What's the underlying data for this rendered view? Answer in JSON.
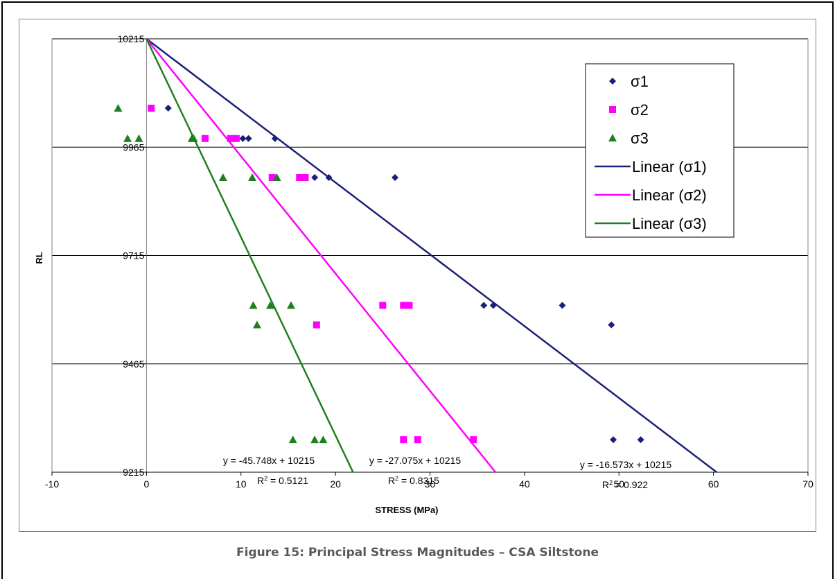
{
  "caption": "Figure 15: Principal Stress Magnitudes – CSA Siltstone",
  "colors": {
    "sigma1": "#1a1f7a",
    "sigma2": "#ff00ff",
    "sigma3": "#1f7f1f",
    "grid": "#000000",
    "axis": "#7f7f7f"
  },
  "chart_data": {
    "type": "scatter",
    "title": "",
    "xlabel": "STRESS (MPa)",
    "ylabel": "RL",
    "xlim": [
      -10,
      70
    ],
    "ylim": [
      9215,
      10215
    ],
    "x_ticks": [
      "-10",
      "0",
      "10",
      "20",
      "30",
      "40",
      "50",
      "60",
      "70"
    ],
    "y_ticks": [
      "9215",
      "9465",
      "9715",
      "9965",
      "10215"
    ],
    "grid": "horizontal major gridlines",
    "legend_position": "top-right",
    "series": [
      {
        "name": "σ1",
        "marker": "diamond",
        "color": "#1a1f7a",
        "points": [
          [
            2.3,
            10055
          ],
          [
            10.2,
            9985
          ],
          [
            10.8,
            9985
          ],
          [
            13.6,
            9985
          ],
          [
            17.8,
            9895
          ],
          [
            19.3,
            9895
          ],
          [
            26.3,
            9895
          ],
          [
            35.7,
            9600
          ],
          [
            36.7,
            9600
          ],
          [
            44.0,
            9600
          ],
          [
            49.2,
            9555
          ],
          [
            49.4,
            9290
          ],
          [
            52.3,
            9290
          ]
        ]
      },
      {
        "name": "σ2",
        "marker": "square",
        "color": "#ff00ff",
        "points": [
          [
            0.5,
            10055
          ],
          [
            6.2,
            9985
          ],
          [
            8.9,
            9985
          ],
          [
            9.5,
            9985
          ],
          [
            13.3,
            9895
          ],
          [
            16.2,
            9895
          ],
          [
            16.8,
            9895
          ],
          [
            25.0,
            9600
          ],
          [
            27.2,
            9600
          ],
          [
            27.8,
            9600
          ],
          [
            18.0,
            9555
          ],
          [
            27.2,
            9290
          ],
          [
            28.7,
            9290
          ],
          [
            34.6,
            9290
          ]
        ]
      },
      {
        "name": "σ3",
        "marker": "triangle",
        "color": "#1f7f1f",
        "points": [
          [
            -3.0,
            10055
          ],
          [
            -2.0,
            9985
          ],
          [
            -0.8,
            9985
          ],
          [
            4.8,
            9985
          ],
          [
            5.0,
            9985
          ],
          [
            8.1,
            9895
          ],
          [
            11.2,
            9895
          ],
          [
            13.8,
            9895
          ],
          [
            11.3,
            9600
          ],
          [
            13.1,
            9600
          ],
          [
            15.3,
            9600
          ],
          [
            11.7,
            9555
          ],
          [
            15.5,
            9290
          ],
          [
            17.8,
            9290
          ],
          [
            18.7,
            9290
          ]
        ]
      },
      {
        "name": "Linear (σ1)",
        "type": "line",
        "color": "#1a1f7a",
        "slope": -16.573,
        "intercept": 10215,
        "equation": "y = -16.573x + 10215",
        "r2": "0.922"
      },
      {
        "name": "Linear (σ2)",
        "type": "line",
        "color": "#ff00ff",
        "slope": -27.075,
        "intercept": 10215,
        "equation": "y = -27.075x + 10215",
        "r2": "0.8315"
      },
      {
        "name": "Linear (σ3)",
        "type": "line",
        "color": "#1f7f1f",
        "slope": -45.748,
        "intercept": 10215,
        "equation": "y = -45.748x + 10215",
        "r2": "0.5121"
      }
    ],
    "r2_prefix": "R",
    "r2_sup": "2",
    "r2_suffix": " = "
  }
}
